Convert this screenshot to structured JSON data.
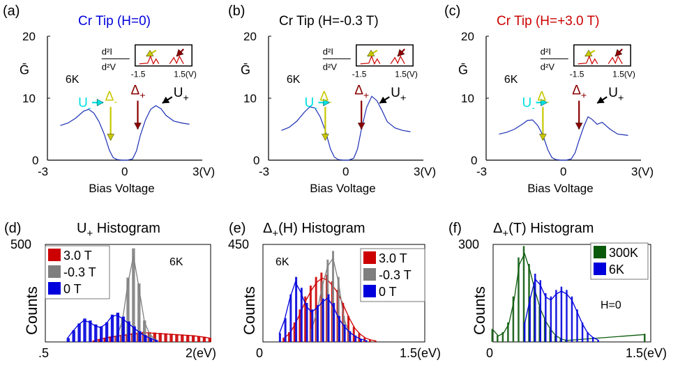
{
  "colors": {
    "blue": "#0000dd",
    "red": "#cc0000",
    "darkred": "#8b0000",
    "yellow": "#c8c800",
    "cyan": "#00e0e0",
    "gray": "#7f7f7f",
    "green": "#0b5a0b",
    "black": "#000000"
  },
  "chart_data": [
    {
      "panel": "(a)",
      "type": "line",
      "title": "Cr Tip (H=0)",
      "title_color": "#0000dd",
      "ylabel": "Ḡ",
      "xlabel": "Bias Voltage",
      "xlim": [
        -3,
        3
      ],
      "ylim": [
        0,
        20
      ],
      "xticks": [
        "-3",
        "0",
        "3(V)"
      ],
      "yticks": [
        "20",
        "10",
        "0"
      ],
      "temp_label": "6K",
      "series": [
        {
          "x": [
            -2.5,
            -2.2,
            -1.9,
            -1.6,
            -1.4,
            -1.2,
            -1.0,
            -0.8,
            -0.6,
            -0.45,
            -0.3,
            -0.1,
            0.1,
            0.3,
            0.45,
            0.6,
            0.8,
            1.0,
            1.2,
            1.4,
            1.6,
            1.9,
            2.2,
            2.5
          ],
          "y": [
            5.6,
            6.0,
            6.8,
            7.9,
            8.2,
            7.6,
            6.2,
            4.2,
            1.6,
            0.4,
            0.1,
            0.0,
            0.0,
            0.2,
            1.5,
            4.0,
            6.5,
            8.2,
            8.8,
            8.3,
            7.2,
            6.3,
            6.0,
            5.8
          ]
        }
      ],
      "markers": [
        {
          "label": "U",
          "sub": "-",
          "color": "#00e0e0"
        },
        {
          "label": "Δ",
          "sub": "-",
          "color": "#c8c800"
        },
        {
          "label": "Δ",
          "sub": "+",
          "color": "#8b0000"
        },
        {
          "label": "U",
          "sub": "+",
          "color": "#000000"
        }
      ],
      "inset": {
        "ylabel_top": "d²I",
        "ylabel_bottom": "d²V",
        "xticks": [
          "-1.5",
          "1.5(V)"
        ]
      }
    },
    {
      "panel": "(b)",
      "type": "line",
      "title": "Cr Tip (H=-0.3 T)",
      "title_color": "#000000",
      "ylabel": "Ḡ",
      "xlabel": "Bias Voltage",
      "xlim": [
        -3,
        3
      ],
      "ylim": [
        0,
        20
      ],
      "xticks": [
        "-3",
        "0",
        "3(V)"
      ],
      "yticks": [
        "20",
        "10",
        "0"
      ],
      "temp_label": "6K",
      "series": [
        {
          "x": [
            -2.5,
            -2.2,
            -1.9,
            -1.6,
            -1.4,
            -1.2,
            -1.0,
            -0.8,
            -0.6,
            -0.45,
            -0.3,
            -0.1,
            0.1,
            0.3,
            0.45,
            0.6,
            0.8,
            1.0,
            1.2,
            1.4,
            1.6,
            1.9,
            2.2,
            2.5
          ],
          "y": [
            4.8,
            5.3,
            6.3,
            7.8,
            8.6,
            8.4,
            7.0,
            4.8,
            1.8,
            0.5,
            0.1,
            0.0,
            0.0,
            0.3,
            1.8,
            5.0,
            8.5,
            10.3,
            9.6,
            8.0,
            6.2,
            5.2,
            4.8,
            4.6
          ]
        }
      ],
      "markers": [
        {
          "label": "U",
          "sub": "-",
          "color": "#00e0e0"
        },
        {
          "label": "Δ",
          "sub": "-",
          "color": "#c8c800"
        },
        {
          "label": "Δ",
          "sub": "+",
          "color": "#8b0000"
        },
        {
          "label": "U",
          "sub": "+",
          "color": "#000000"
        }
      ],
      "inset": {
        "ylabel_top": "d²I",
        "ylabel_bottom": "d²V",
        "xticks": [
          "-1.5",
          "1.5(V)"
        ]
      }
    },
    {
      "panel": "(c)",
      "type": "line",
      "title": "Cr Tip (H=+3.0 T)",
      "title_color": "#cc0000",
      "ylabel": "Ḡ",
      "xlabel": "Bias Voltage",
      "xlim": [
        -3,
        3
      ],
      "ylim": [
        0,
        20
      ],
      "xticks": [
        "-3",
        "0",
        "3(V)"
      ],
      "yticks": [
        "20",
        "10",
        "0"
      ],
      "temp_label": "6K",
      "series": [
        {
          "x": [
            -2.5,
            -2.2,
            -1.9,
            -1.6,
            -1.4,
            -1.2,
            -1.0,
            -0.8,
            -0.6,
            -0.45,
            -0.3,
            -0.1,
            0.1,
            0.3,
            0.45,
            0.6,
            0.8,
            0.95,
            1.1,
            1.3,
            1.5,
            1.8,
            2.1,
            2.5
          ],
          "y": [
            4.2,
            4.5,
            5.0,
            5.8,
            6.4,
            6.5,
            5.6,
            4.0,
            1.6,
            0.4,
            0.1,
            0.0,
            0.0,
            0.2,
            1.2,
            3.2,
            5.6,
            7.0,
            6.6,
            5.8,
            6.1,
            5.0,
            4.2,
            4.0
          ]
        }
      ],
      "markers": [
        {
          "label": "U",
          "sub": "-",
          "color": "#00e0e0"
        },
        {
          "label": "Δ",
          "sub": "-",
          "color": "#c8c800"
        },
        {
          "label": "Δ",
          "sub": "+",
          "color": "#8b0000"
        },
        {
          "label": "U",
          "sub": "+",
          "color": "#000000"
        }
      ],
      "inset": {
        "ylabel_top": "d²I",
        "ylabel_bottom": "d²V",
        "xticks": [
          "-1.5",
          "1.5(V)"
        ]
      }
    },
    {
      "panel": "(d)",
      "type": "bar",
      "title": "U",
      "title_sub": "+",
      "title_rest": " Histogram",
      "ylabel": "Counts",
      "xlim": [
        0.5,
        2.0
      ],
      "ylim": [
        0,
        500
      ],
      "xticks": [
        ".5",
        "2(eV)"
      ],
      "yticks": [
        "500"
      ],
      "temp_label": "6K",
      "bin_width": 0.05,
      "series": [
        {
          "name": "3.0 T",
          "color": "#cc0000",
          "x": [
            0.95,
            1.0,
            1.05,
            1.1,
            1.15,
            1.2,
            1.25,
            1.3,
            1.35,
            1.4,
            1.45,
            1.5,
            1.55,
            1.6,
            1.65,
            1.7,
            1.75,
            1.8,
            1.85,
            1.9,
            1.95,
            2.0
          ],
          "values": [
            8,
            15,
            22,
            28,
            32,
            36,
            40,
            45,
            48,
            52,
            50,
            48,
            46,
            44,
            42,
            40,
            38,
            36,
            34,
            30,
            26,
            20
          ]
        },
        {
          "name": "-0.3 T",
          "color": "#7f7f7f",
          "x": [
            1.15,
            1.2,
            1.25,
            1.3,
            1.35,
            1.4,
            1.45,
            1.5
          ],
          "values": [
            30,
            120,
            330,
            480,
            300,
            110,
            40,
            12
          ]
        },
        {
          "name": "0 T",
          "color": "#0000dd",
          "x": [
            0.7,
            0.75,
            0.8,
            0.85,
            0.9,
            0.95,
            1.0,
            1.05,
            1.1,
            1.15,
            1.2,
            1.25,
            1.3,
            1.35,
            1.4,
            1.45,
            1.5
          ],
          "values": [
            20,
            60,
            95,
            120,
            110,
            90,
            80,
            100,
            140,
            150,
            130,
            105,
            80,
            55,
            35,
            20,
            10
          ]
        }
      ]
    },
    {
      "panel": "(e)",
      "type": "bar",
      "title": "Δ",
      "title_sub": "+",
      "title_rest": "(H) Histogram",
      "ylabel": "Counts",
      "xlim": [
        0,
        1.5
      ],
      "ylim": [
        0,
        450
      ],
      "xticks": [
        "0",
        "1.5(eV)"
      ],
      "yticks": [
        "450"
      ],
      "temp_label": "6K",
      "bin_width": 0.035,
      "series": [
        {
          "name": "3.0 T",
          "color": "#cc0000",
          "x": [
            0.2,
            0.25,
            0.3,
            0.35,
            0.4,
            0.45,
            0.5,
            0.55,
            0.6,
            0.65,
            0.7,
            0.75,
            0.8,
            0.85,
            0.9,
            0.95,
            1.0,
            1.05
          ],
          "values": [
            20,
            45,
            90,
            150,
            210,
            260,
            300,
            320,
            310,
            280,
            240,
            180,
            120,
            70,
            40,
            20,
            10,
            5
          ]
        },
        {
          "name": "-0.3 T",
          "color": "#7f7f7f",
          "x": [
            0.45,
            0.5,
            0.55,
            0.6,
            0.65,
            0.7,
            0.75,
            0.8
          ],
          "values": [
            60,
            150,
            280,
            380,
            420,
            300,
            120,
            40
          ]
        },
        {
          "name": "0 T",
          "color": "#0000dd",
          "x": [
            0.15,
            0.2,
            0.25,
            0.3,
            0.35,
            0.4,
            0.45,
            0.5,
            0.55,
            0.6,
            0.65,
            0.7,
            0.75,
            0.8,
            0.85,
            0.9,
            0.95
          ],
          "values": [
            40,
            110,
            220,
            300,
            250,
            180,
            150,
            170,
            200,
            220,
            180,
            120,
            80,
            50,
            30,
            15,
            8
          ]
        }
      ]
    },
    {
      "panel": "(f)",
      "type": "bar",
      "title": "Δ",
      "title_sub": "+",
      "title_rest": "(T) Histogram",
      "ylabel": "Counts",
      "xlim": [
        0,
        1.5
      ],
      "ylim": [
        0,
        300
      ],
      "xticks": [
        "0",
        "1.5(eV)"
      ],
      "yticks": [
        "300"
      ],
      "annotation": "H=0",
      "bin_width": 0.03,
      "series": [
        {
          "name": "300K",
          "color": "#0b5a0b",
          "x": [
            0.0,
            0.05,
            0.1,
            0.15,
            0.2,
            0.25,
            0.3,
            0.35,
            0.4,
            0.45,
            0.5,
            0.55,
            0.6,
            0.65,
            0.7,
            1.45
          ],
          "values": [
            40,
            20,
            30,
            60,
            140,
            260,
            295,
            240,
            170,
            110,
            70,
            40,
            20,
            10,
            5,
            25
          ]
        },
        {
          "name": "6K",
          "color": "#0000dd",
          "x": [
            0.3,
            0.35,
            0.4,
            0.45,
            0.5,
            0.55,
            0.6,
            0.65,
            0.7,
            0.75,
            0.8,
            0.85,
            0.9,
            0.95,
            1.0
          ],
          "values": [
            60,
            140,
            210,
            190,
            150,
            140,
            160,
            170,
            160,
            140,
            100,
            60,
            30,
            15,
            6
          ]
        }
      ]
    }
  ]
}
